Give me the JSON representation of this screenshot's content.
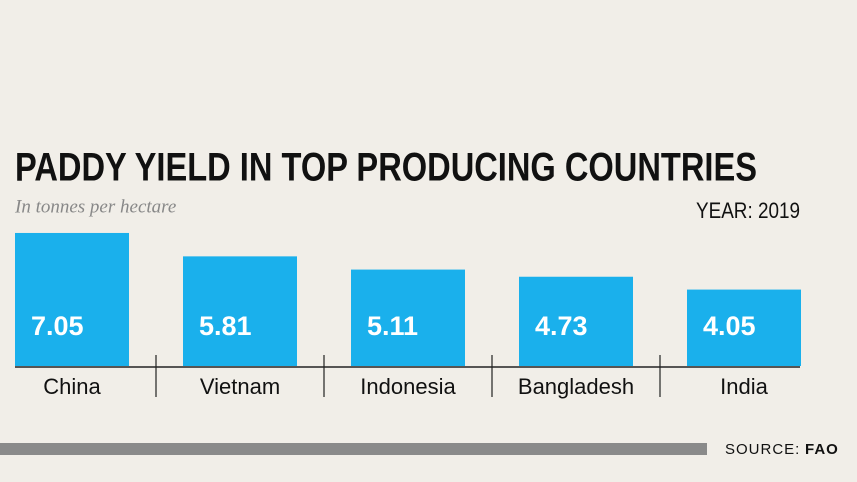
{
  "chart_data": {
    "type": "bar",
    "title": "PADDY YIELD IN TOP PRODUCING COUNTRIES",
    "subtitle": "In tonnes per hectare",
    "year_label": "YEAR: 2019",
    "categories": [
      "China",
      "Vietnam",
      "Indonesia",
      "Bangladesh",
      "India"
    ],
    "values": [
      7.05,
      5.81,
      5.11,
      4.73,
      4.05
    ],
    "color": "#1ab0ec",
    "source": {
      "label": "SOURCE:",
      "name": "FAO"
    }
  }
}
